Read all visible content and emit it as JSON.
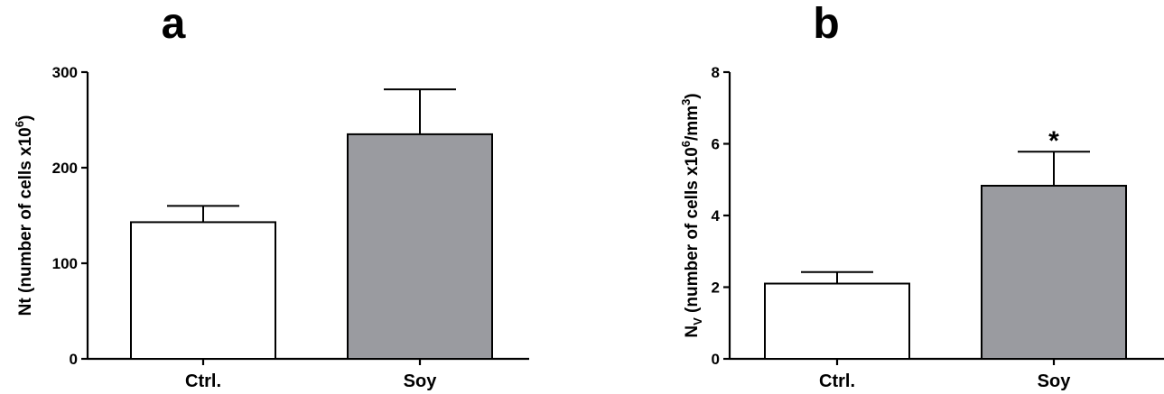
{
  "chart_data": [
    {
      "type": "bar",
      "panel_label": "a",
      "categories": [
        "Ctrl.",
        "Soy"
      ],
      "values": [
        143,
        235
      ],
      "errors": [
        17,
        47
      ],
      "ylabel": {
        "main": "Nt (number of cells x10",
        "sup": "6",
        "close": ")"
      },
      "ylim": [
        0,
        300
      ],
      "yticks": [
        0,
        100,
        200,
        300
      ],
      "bar_colors": [
        "#ffffff",
        "#9a9ba0"
      ],
      "annotations": [
        "",
        ""
      ]
    },
    {
      "type": "bar",
      "panel_label": "b",
      "categories": [
        "Ctrl.",
        "Soy"
      ],
      "values": [
        2.1,
        4.83
      ],
      "errors": [
        0.32,
        0.95
      ],
      "ylabel": {
        "n": "N",
        "sub": "V",
        "main": " (number of cells x10",
        "sup": "6",
        "mid": "/mm",
        "sup2": "3",
        "close": ")"
      },
      "ylim": [
        0,
        8
      ],
      "yticks": [
        0,
        2,
        4,
        6,
        8
      ],
      "bar_colors": [
        "#ffffff",
        "#9a9ba0"
      ],
      "annotations": [
        "",
        "*"
      ]
    }
  ]
}
